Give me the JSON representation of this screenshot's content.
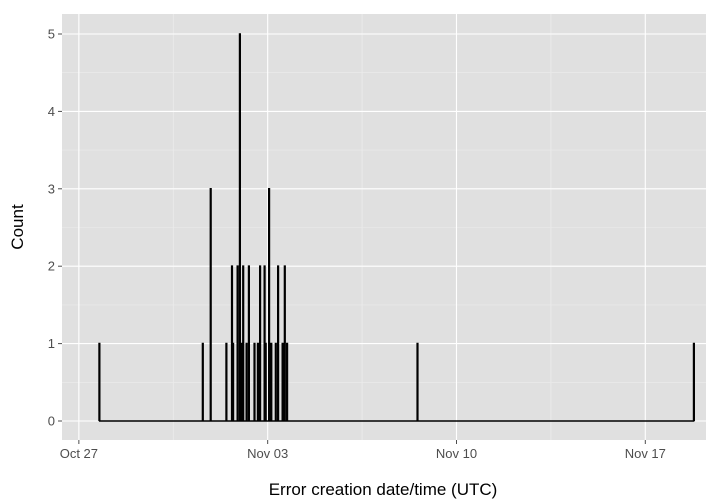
{
  "chart_data": {
    "type": "line",
    "title": "",
    "xlabel": "Error creation date/time (UTC)",
    "ylabel": "Count",
    "x_ticks": [
      "Oct 27",
      "Nov 03",
      "Nov 10",
      "Nov 17"
    ],
    "y_ticks": [
      "0",
      "1",
      "2",
      "3",
      "4",
      "5"
    ],
    "xlim": [
      "2014-10-26 09:00",
      "2014-11-19 06:00"
    ],
    "ylim": [
      0,
      5
    ],
    "grid": true,
    "background": "#e0e0e0",
    "grid_color": "#ffffff",
    "line_color": "#000000",
    "x": [
      "2014-10-27 18:00",
      "2014-10-31 14:00",
      "2014-10-31 21:00",
      "2014-11-01 11:00",
      "2014-11-01 16:00",
      "2014-11-01 17:00",
      "2014-11-01 21:00",
      "2014-11-01 23:00",
      "2014-11-02 00:00",
      "2014-11-02 02:00",
      "2014-11-02 05:00",
      "2014-11-02 07:00",
      "2014-11-02 12:00",
      "2014-11-02 15:00",
      "2014-11-02 17:00",
      "2014-11-02 21:00",
      "2014-11-02 22:00",
      "2014-11-03 01:00",
      "2014-11-03 03:00",
      "2014-11-03 07:00",
      "2014-11-03 09:00",
      "2014-11-03 13:00",
      "2014-11-03 15:00",
      "2014-11-03 17:00",
      "2014-11-08 13:00",
      "2014-11-18 19:00"
    ],
    "y": [
      1,
      1,
      3,
      1,
      2,
      1,
      2,
      5,
      1,
      2,
      1,
      2,
      1,
      1,
      2,
      2,
      1,
      3,
      1,
      1,
      2,
      1,
      2,
      1,
      1,
      1
    ]
  }
}
